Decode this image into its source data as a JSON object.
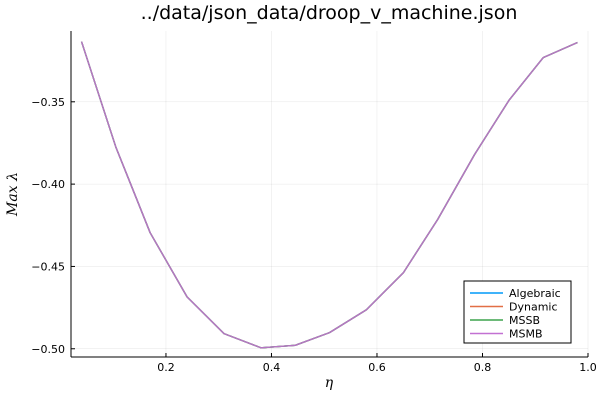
{
  "chart_data": {
    "type": "line",
    "title": "../data/json_data/droop_v_machine.json",
    "xlabel": "η",
    "ylabel": "Max λ",
    "xlim": [
      0.02,
      1.0
    ],
    "ylim": [
      -0.505,
      -0.307
    ],
    "xticks": [
      0.2,
      0.4,
      0.6,
      0.8,
      1.0
    ],
    "xtick_labels": [
      "0.2",
      "0.4",
      "0.6",
      "0.8",
      "1.0"
    ],
    "yticks": [
      -0.5,
      -0.45,
      -0.4,
      -0.35
    ],
    "ytick_labels": [
      "-0.50",
      "-0.45",
      "-0.40",
      "-0.35"
    ],
    "grid": true,
    "legend_position": "bottom-right",
    "x": [
      0.04,
      0.105,
      0.17,
      0.24,
      0.31,
      0.38,
      0.445,
      0.51,
      0.58,
      0.65,
      0.715,
      0.785,
      0.85,
      0.915,
      0.98
    ],
    "series": [
      {
        "name": "Algebraic",
        "color": "#009af9",
        "values": [
          -0.3135,
          -0.3775,
          -0.4295,
          -0.4685,
          -0.4908,
          -0.4994,
          -0.4979,
          -0.4902,
          -0.4763,
          -0.4538,
          -0.4215,
          -0.382,
          -0.3492,
          -0.3232,
          -0.314
        ]
      },
      {
        "name": "Dynamic",
        "color": "#e26f46",
        "values": [
          -0.3135,
          -0.3775,
          -0.4295,
          -0.4685,
          -0.4908,
          -0.4994,
          -0.4979,
          -0.4902,
          -0.4763,
          -0.4538,
          -0.4215,
          -0.382,
          -0.3492,
          -0.3232,
          -0.314
        ]
      },
      {
        "name": "MSSB",
        "color": "#3da44d",
        "values": [
          -0.3135,
          -0.3775,
          -0.4295,
          -0.4685,
          -0.4908,
          -0.4994,
          -0.4979,
          -0.4902,
          -0.4763,
          -0.4538,
          -0.4215,
          -0.382,
          -0.3492,
          -0.3232,
          -0.314
        ]
      },
      {
        "name": "MSMB",
        "color": "#c271d2",
        "values": [
          -0.3135,
          -0.3775,
          -0.4295,
          -0.4685,
          -0.4908,
          -0.4994,
          -0.4979,
          -0.4902,
          -0.4763,
          -0.4538,
          -0.4215,
          -0.382,
          -0.3492,
          -0.3232,
          -0.314
        ]
      }
    ]
  }
}
